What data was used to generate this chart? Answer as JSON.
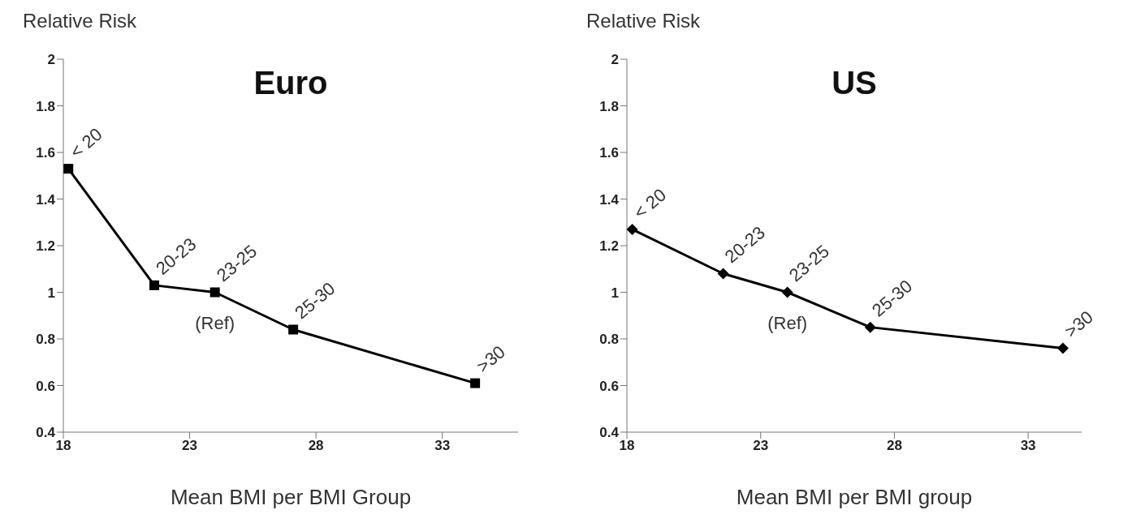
{
  "chart_data": [
    {
      "type": "line",
      "title": "Euro",
      "ylabel": "Relative Risk",
      "xlabel": "Mean BMI per BMI Group",
      "marker": "square",
      "xlim": [
        18,
        36
      ],
      "xticks": [
        18,
        23,
        28,
        33
      ],
      "ylim": [
        0.4,
        2
      ],
      "yticks": [
        0.4,
        0.6,
        0.8,
        1,
        1.2,
        1.4,
        1.6,
        1.8,
        2
      ],
      "x": [
        18.2,
        21.6,
        24.0,
        27.1,
        34.3
      ],
      "series": [
        {
          "color": "#000000",
          "values": [
            1.53,
            1.03,
            1.0,
            0.84,
            0.61
          ]
        }
      ],
      "annotations": [
        {
          "text": "< 20",
          "x": 18.2,
          "y": 1.53
        },
        {
          "text": "20-23",
          "x": 21.6,
          "y": 1.03
        },
        {
          "text": "23-25",
          "x": 24.0,
          "y": 1.0
        },
        {
          "text": "25-30",
          "x": 27.1,
          "y": 0.84
        },
        {
          "text": ">30",
          "x": 34.3,
          "y": 0.61
        },
        {
          "text": "(Ref)",
          "x": 24.0,
          "y": 1.0
        }
      ]
    },
    {
      "type": "line",
      "title": "US",
      "ylabel": "Relative Risk",
      "xlabel": "Mean BMI per BMI group",
      "marker": "diamond",
      "xlim": [
        18,
        35
      ],
      "xticks": [
        18,
        23,
        28,
        33
      ],
      "ylim": [
        0.4,
        2
      ],
      "yticks": [
        0.4,
        0.6,
        0.8,
        1,
        1.2,
        1.4,
        1.6,
        1.8,
        2
      ],
      "x": [
        18.2,
        21.6,
        24.0,
        27.1,
        34.3
      ],
      "series": [
        {
          "color": "#000000",
          "values": [
            1.27,
            1.08,
            1.0,
            0.85,
            0.76
          ]
        }
      ],
      "annotations": [
        {
          "text": "< 20",
          "x": 18.2,
          "y": 1.27
        },
        {
          "text": "20-23",
          "x": 21.6,
          "y": 1.08
        },
        {
          "text": "23-25",
          "x": 24.0,
          "y": 1.0
        },
        {
          "text": "25-30",
          "x": 27.1,
          "y": 0.85
        },
        {
          "text": ">30",
          "x": 34.3,
          "y": 0.76
        },
        {
          "text": "(Ref)",
          "x": 24.0,
          "y": 1.0
        }
      ]
    }
  ]
}
